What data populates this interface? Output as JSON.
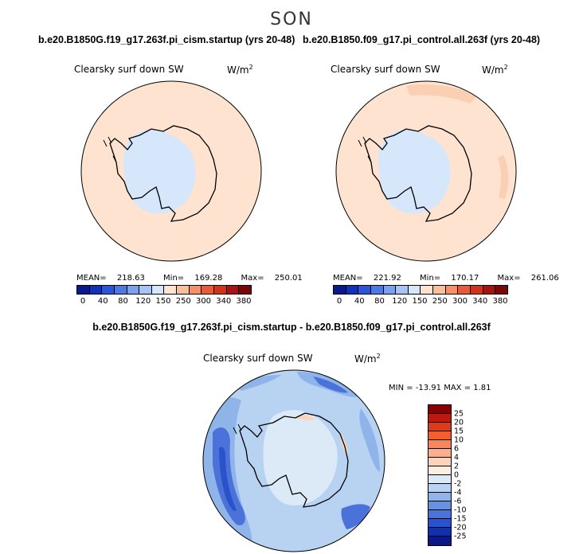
{
  "season": "SON",
  "panel_left": {
    "case_title": "b.e20.B1850G.f19_g17.263f.pi_cism.startup (yrs 20-48)",
    "variable": "Clearsky surf down SW",
    "units": "W/m",
    "units_exp": "2",
    "mean_label": "MEAN=",
    "mean": "218.63",
    "min_label": "Min=",
    "min": "169.28",
    "max_label": "Max=",
    "max": "250.01"
  },
  "panel_right": {
    "case_title": "b.e20.B1850.f09_g17.pi_control.all.263f (yrs 20-48)",
    "variable": "Clearsky surf down SW",
    "units": "W/m",
    "units_exp": "2",
    "mean_label": "MEAN=",
    "mean": "221.92",
    "min_label": "Min=",
    "min": "170.17",
    "max_label": "Max=",
    "max": "261.06"
  },
  "abs_colorbar": {
    "colors": [
      "#0a1a8c",
      "#1030c0",
      "#2a55d8",
      "#4a7ae6",
      "#7aa0ef",
      "#a8c4f5",
      "#d6e6fb",
      "#fde3d0",
      "#fbbf9e",
      "#f79068",
      "#ec5a35",
      "#d4301a",
      "#a81210",
      "#7a0808"
    ],
    "tick_labels": [
      "0",
      "40",
      "80",
      "120",
      "150",
      "250",
      "300",
      "340",
      "380"
    ]
  },
  "panel_diff": {
    "title": "b.e20.B1850G.f19_g17.263f.pi_cism.startup - b.e20.B1850.f09_g17.pi_control.all.263f",
    "variable": "Clearsky surf down SW",
    "units": "W/m",
    "units_exp": "2",
    "minmax_text": "MIN = -13.91 MAX =   1.81"
  },
  "diff_colorbar": {
    "colors": [
      "#8b0000",
      "#c0180e",
      "#e03a1a",
      "#f25e2e",
      "#f7865a",
      "#fab08c",
      "#fcd4bc",
      "#fdeee2",
      "#dceaf8",
      "#b8d2f2",
      "#8eb4ea",
      "#6892e0",
      "#4a72d8",
      "#2a52cc",
      "#1030b4",
      "#0a1888"
    ],
    "tick_labels": [
      "25",
      "20",
      "15",
      "10",
      "6",
      "4",
      "2",
      "0",
      "-2",
      "-4",
      "-6",
      "-10",
      "-15",
      "-20",
      "-25"
    ]
  },
  "map_colors": {
    "ocean_left": "#fde3d0",
    "ocean_right": "#fde3d0",
    "ocean_right_high": "#fbcfb4",
    "interior_low": "#d6e6fb",
    "diff_base": "#b8d2f2",
    "diff_mid": "#8eb4ea",
    "diff_low": "#4a72d8",
    "diff_lower": "#2a52cc",
    "diff_pale": "#dceaf8",
    "diff_warm": "#fcd4bc"
  }
}
